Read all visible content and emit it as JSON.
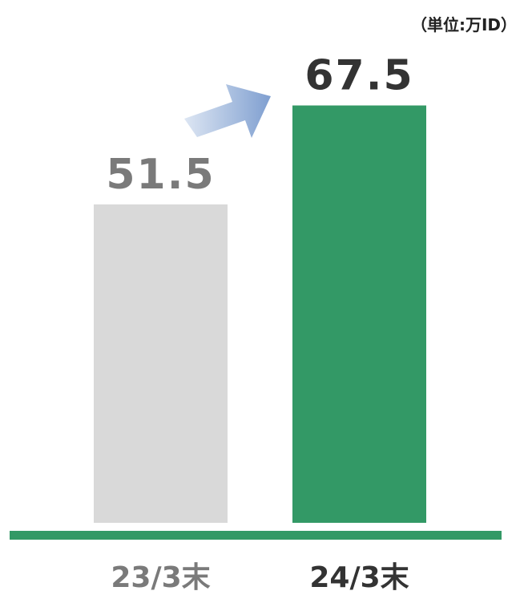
{
  "chart_data": {
    "type": "bar",
    "unit": "（単位:万ID）",
    "categories": [
      "23/3末",
      "24/3末"
    ],
    "values": [
      51.5,
      67.5
    ],
    "value_labels": [
      "51.5",
      "67.5"
    ],
    "ylim": [
      0,
      83
    ],
    "bar_colors": [
      "#d9d9d9",
      "#339966"
    ],
    "value_label_colors": [
      "#7a7a7a",
      "#333333"
    ],
    "category_label_colors": [
      "#7a7a7a",
      "#333333"
    ],
    "baseline_color": "#339966",
    "arrow_colors": [
      "#dde6f3",
      "#7f9fd0"
    ],
    "grid": false,
    "legend": "none"
  }
}
